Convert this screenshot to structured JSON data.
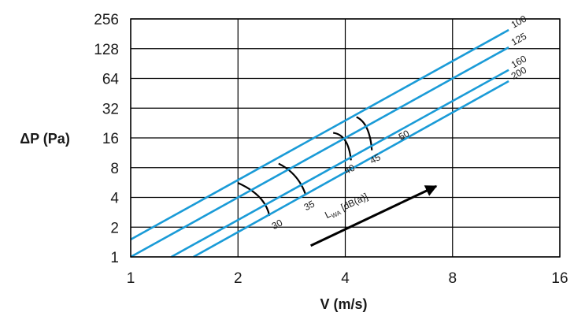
{
  "chart_data": {
    "type": "line",
    "xlabel": "V (m/s)",
    "ylabel": "ΔP (Pa)",
    "x_scale": "log2",
    "y_scale": "log2",
    "xlim": [
      1,
      16
    ],
    "ylim": [
      1,
      256
    ],
    "x_ticks": [
      "1",
      "2",
      "4",
      "8",
      "16"
    ],
    "y_ticks": [
      "1",
      "2",
      "4",
      "8",
      "16",
      "32",
      "64",
      "128",
      "256"
    ],
    "grid": true,
    "line_color": "#1a9bd7",
    "series": [
      {
        "name": "100",
        "points": [
          [
            1.0,
            1.5
          ],
          [
            11.5,
            198
          ]
        ]
      },
      {
        "name": "125",
        "points": [
          [
            1.0,
            1.0
          ],
          [
            11.5,
            132
          ]
        ]
      },
      {
        "name": "160",
        "points": [
          [
            1.3,
            1.0
          ],
          [
            11.5,
            78
          ]
        ]
      },
      {
        "name": "200",
        "points": [
          [
            1.5,
            1.0
          ],
          [
            11.5,
            60
          ]
        ]
      }
    ],
    "noise_label": "L_WA [dB(a)]",
    "noise_label_main": "L",
    "noise_label_sub": "WA",
    "noise_label_rest": " [dB(a)]",
    "noise_curves": [
      {
        "label": "30",
        "points": [
          [
            2.0,
            5.6
          ],
          [
            2.3,
            4.0
          ],
          [
            2.45,
            2.6
          ]
        ]
      },
      {
        "label": "35",
        "points": [
          [
            2.6,
            8.8
          ],
          [
            2.9,
            6.5
          ],
          [
            3.1,
            4.2
          ]
        ]
      },
      {
        "label": "40",
        "points": [
          [
            3.7,
            18.0
          ],
          [
            4.0,
            15.0
          ],
          [
            4.15,
            9.5
          ]
        ]
      },
      {
        "label": "45",
        "points": [
          [
            4.3,
            26.0
          ],
          [
            4.6,
            20.0
          ],
          [
            4.75,
            12.0
          ]
        ]
      },
      {
        "label": "50",
        "points": []
      }
    ],
    "noise_label_positions": {
      "30": [
        2.6,
        2.0
      ],
      "35": [
        3.2,
        3.1
      ],
      "40": [
        4.15,
        7.2
      ],
      "45": [
        4.9,
        9.2
      ],
      "50": [
        5.9,
        16.0
      ]
    },
    "annotation_arrow": {
      "from": [
        3.2,
        1.3
      ],
      "to": [
        7.2,
        5.2
      ]
    }
  }
}
